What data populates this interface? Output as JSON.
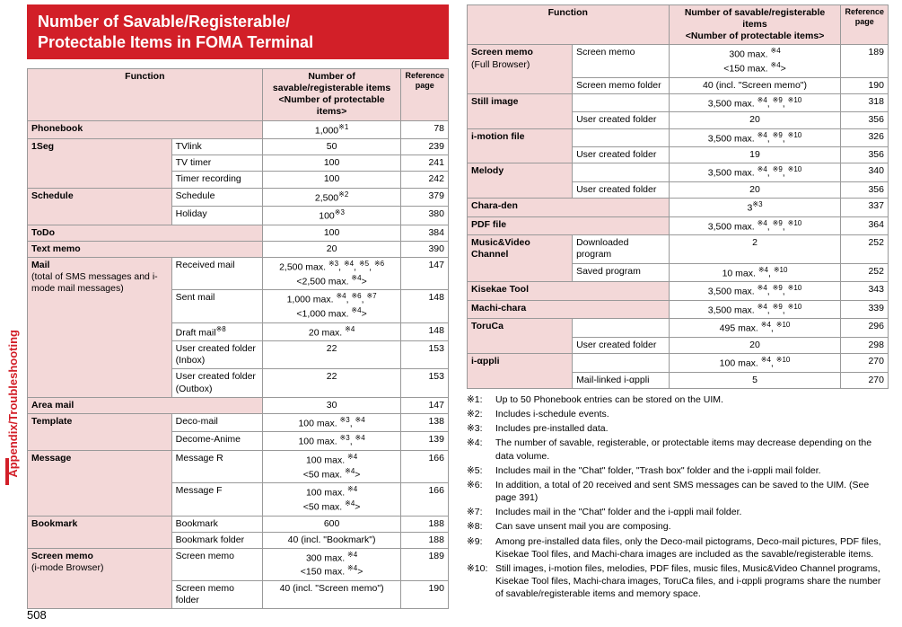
{
  "page": {
    "number": "508",
    "side_tab": "Appendix/Troubleshooting",
    "title_line1": "Number of Savable/Registerable/",
    "title_line2": "Protectable Items in FOMA Terminal"
  },
  "headers": {
    "function": "Function",
    "num_items_line1": "Number of savable/registerable items",
    "num_items_line2": "<Number of protectable items>",
    "ref_page_line1": "Reference",
    "ref_page_line2": "page"
  },
  "table1": [
    {
      "f": "Phonebook",
      "sub": "",
      "num": "1,000※1",
      "ref": "78",
      "rowspan": 1,
      "merge": true
    },
    {
      "f": "1Seg",
      "sub": "TVlink",
      "num": "50",
      "ref": "239",
      "rowspan": 3
    },
    {
      "f": "",
      "sub": "TV timer",
      "num": "100",
      "ref": "241"
    },
    {
      "f": "",
      "sub": "Timer recording",
      "num": "100",
      "ref": "242"
    },
    {
      "f": "Schedule",
      "sub": "Schedule",
      "num": "2,500※2",
      "ref": "379",
      "rowspan": 2
    },
    {
      "f": "",
      "sub": "Holiday",
      "num": "100※3",
      "ref": "380"
    },
    {
      "f": "ToDo",
      "sub": "",
      "num": "100",
      "ref": "384",
      "merge": true
    },
    {
      "f": "Text memo",
      "sub": "",
      "num": "20",
      "ref": "390",
      "merge": true
    },
    {
      "f": "Mail",
      "fnote": "(total of SMS messages and i-mode mail messages)",
      "sub": "Received mail",
      "num": "2,500 max. ※3, ※4, ※5, ※6\n<2,500 max. ※4>",
      "ref": "147",
      "rowspan": 5
    },
    {
      "f": "",
      "sub": "Sent mail",
      "num": "1,000 max. ※4, ※6, ※7\n<1,000 max. ※4>",
      "ref": "148"
    },
    {
      "f": "",
      "sub": "Draft mail※8",
      "num": "20 max. ※4",
      "ref": "148"
    },
    {
      "f": "",
      "sub": "User created folder (Inbox)",
      "num": "22",
      "ref": "153"
    },
    {
      "f": "",
      "sub": "User created folder (Outbox)",
      "num": "22",
      "ref": "153"
    },
    {
      "f": "Area mail",
      "sub": "",
      "num": "30",
      "ref": "147",
      "merge": true
    },
    {
      "f": "Template",
      "sub": "Deco-mail",
      "num": "100 max. ※3, ※4",
      "ref": "138",
      "rowspan": 2
    },
    {
      "f": "",
      "sub": "Decome-Anime",
      "num": "100 max. ※3, ※4",
      "ref": "139"
    },
    {
      "f": "Message",
      "sub": "Message R",
      "num": "100 max. ※4\n<50 max. ※4>",
      "ref": "166",
      "rowspan": 2
    },
    {
      "f": "",
      "sub": "Message F",
      "num": "100 max. ※4\n<50 max. ※4>",
      "ref": "166"
    },
    {
      "f": "Bookmark",
      "sub": "Bookmark",
      "num": "600",
      "ref": "188",
      "rowspan": 2
    },
    {
      "f": "",
      "sub": "Bookmark folder",
      "num": "40 (incl. \"Bookmark\")",
      "ref": "188"
    },
    {
      "f": "Screen memo",
      "fnote": "(i-mode Browser)",
      "sub": "Screen memo",
      "num": "300 max. ※4\n<150 max. ※4>",
      "ref": "189",
      "rowspan": 2
    },
    {
      "f": "",
      "sub": "Screen memo folder",
      "num": "40 (incl. \"Screen memo\")",
      "ref": "190"
    }
  ],
  "table2": [
    {
      "f": "Screen memo",
      "fnote": "(Full Browser)",
      "sub": "Screen memo",
      "num": "300 max. ※4\n<150 max. ※4>",
      "ref": "189",
      "rowspan": 2
    },
    {
      "f": "",
      "sub": "Screen memo folder",
      "num": "40 (incl. \"Screen memo\")",
      "ref": "190"
    },
    {
      "f": "Still image",
      "sub": "",
      "num": "3,500 max. ※4, ※9, ※10",
      "ref": "318",
      "nosub": true
    },
    {
      "f": "",
      "sub": "User created folder",
      "num": "20",
      "ref": "356"
    },
    {
      "f": "i-motion file",
      "sub": "",
      "num": "3,500 max. ※4, ※9, ※10",
      "ref": "326",
      "nosub": true
    },
    {
      "f": "",
      "sub": "User created folder",
      "num": "19",
      "ref": "356"
    },
    {
      "f": "Melody",
      "sub": "",
      "num": "3,500 max. ※4, ※9, ※10",
      "ref": "340",
      "nosub": true
    },
    {
      "f": "",
      "sub": "User created folder",
      "num": "20",
      "ref": "356"
    },
    {
      "f": "Chara-den",
      "sub": "",
      "num": "3※3",
      "ref": "337",
      "merge": true
    },
    {
      "f": "PDF file",
      "sub": "",
      "num": "3,500 max. ※4, ※9, ※10",
      "ref": "364",
      "merge": true
    },
    {
      "f": "Music&Video Channel",
      "sub": "Downloaded program",
      "num": "2",
      "ref": "252",
      "rowspan": 2
    },
    {
      "f": "",
      "sub": "Saved program",
      "num": "10 max. ※4, ※10",
      "ref": "252"
    },
    {
      "f": "Kisekae Tool",
      "sub": "",
      "num": "3,500 max. ※4, ※9, ※10",
      "ref": "343",
      "merge": true
    },
    {
      "f": "Machi-chara",
      "sub": "",
      "num": "3,500 max. ※4, ※9, ※10",
      "ref": "339",
      "merge": true
    },
    {
      "f": "ToruCa",
      "sub": "",
      "num": "495 max. ※4, ※10",
      "ref": "296",
      "nosub": true
    },
    {
      "f": "",
      "sub": "User created folder",
      "num": "20",
      "ref": "298"
    },
    {
      "f": "i-αppli",
      "sub": "",
      "num": "100 max. ※4, ※10",
      "ref": "270",
      "nosub": true
    },
    {
      "f": "",
      "sub": "Mail-linked i-αppli",
      "num": "5",
      "ref": "270"
    }
  ],
  "notes": [
    {
      "label": "※1:",
      "text": "Up to 50 Phonebook entries can be stored on the UIM."
    },
    {
      "label": "※2:",
      "text": "Includes i-schedule events."
    },
    {
      "label": "※3:",
      "text": "Includes pre-installed data."
    },
    {
      "label": "※4:",
      "text": "The number of savable, registerable, or protectable items may decrease depending on the data volume."
    },
    {
      "label": "※5:",
      "text": "Includes mail in the \"Chat\" folder, \"Trash box\" folder and the i-αppli mail folder."
    },
    {
      "label": "※6:",
      "text": "In addition, a total of 20 received and sent SMS messages can be saved to the UIM. (See page 391)"
    },
    {
      "label": "※7:",
      "text": "Includes mail in the \"Chat\" folder and the i-αppli mail folder."
    },
    {
      "label": "※8:",
      "text": "Can save unsent mail you are composing."
    },
    {
      "label": "※9:",
      "text": "Among pre-installed data files, only the Deco-mail pictograms, Deco-mail pictures, PDF files, Kisekae Tool files, and Machi-chara images are included as the savable/registerable items."
    },
    {
      "label": "※10:",
      "text": "Still images, i-motion files, melodies, PDF files, music files, Music&Video Channel programs, Kisekae Tool files, Machi-chara images, ToruCa files, and i-αppli programs share the number of savable/registerable items and memory space."
    }
  ]
}
